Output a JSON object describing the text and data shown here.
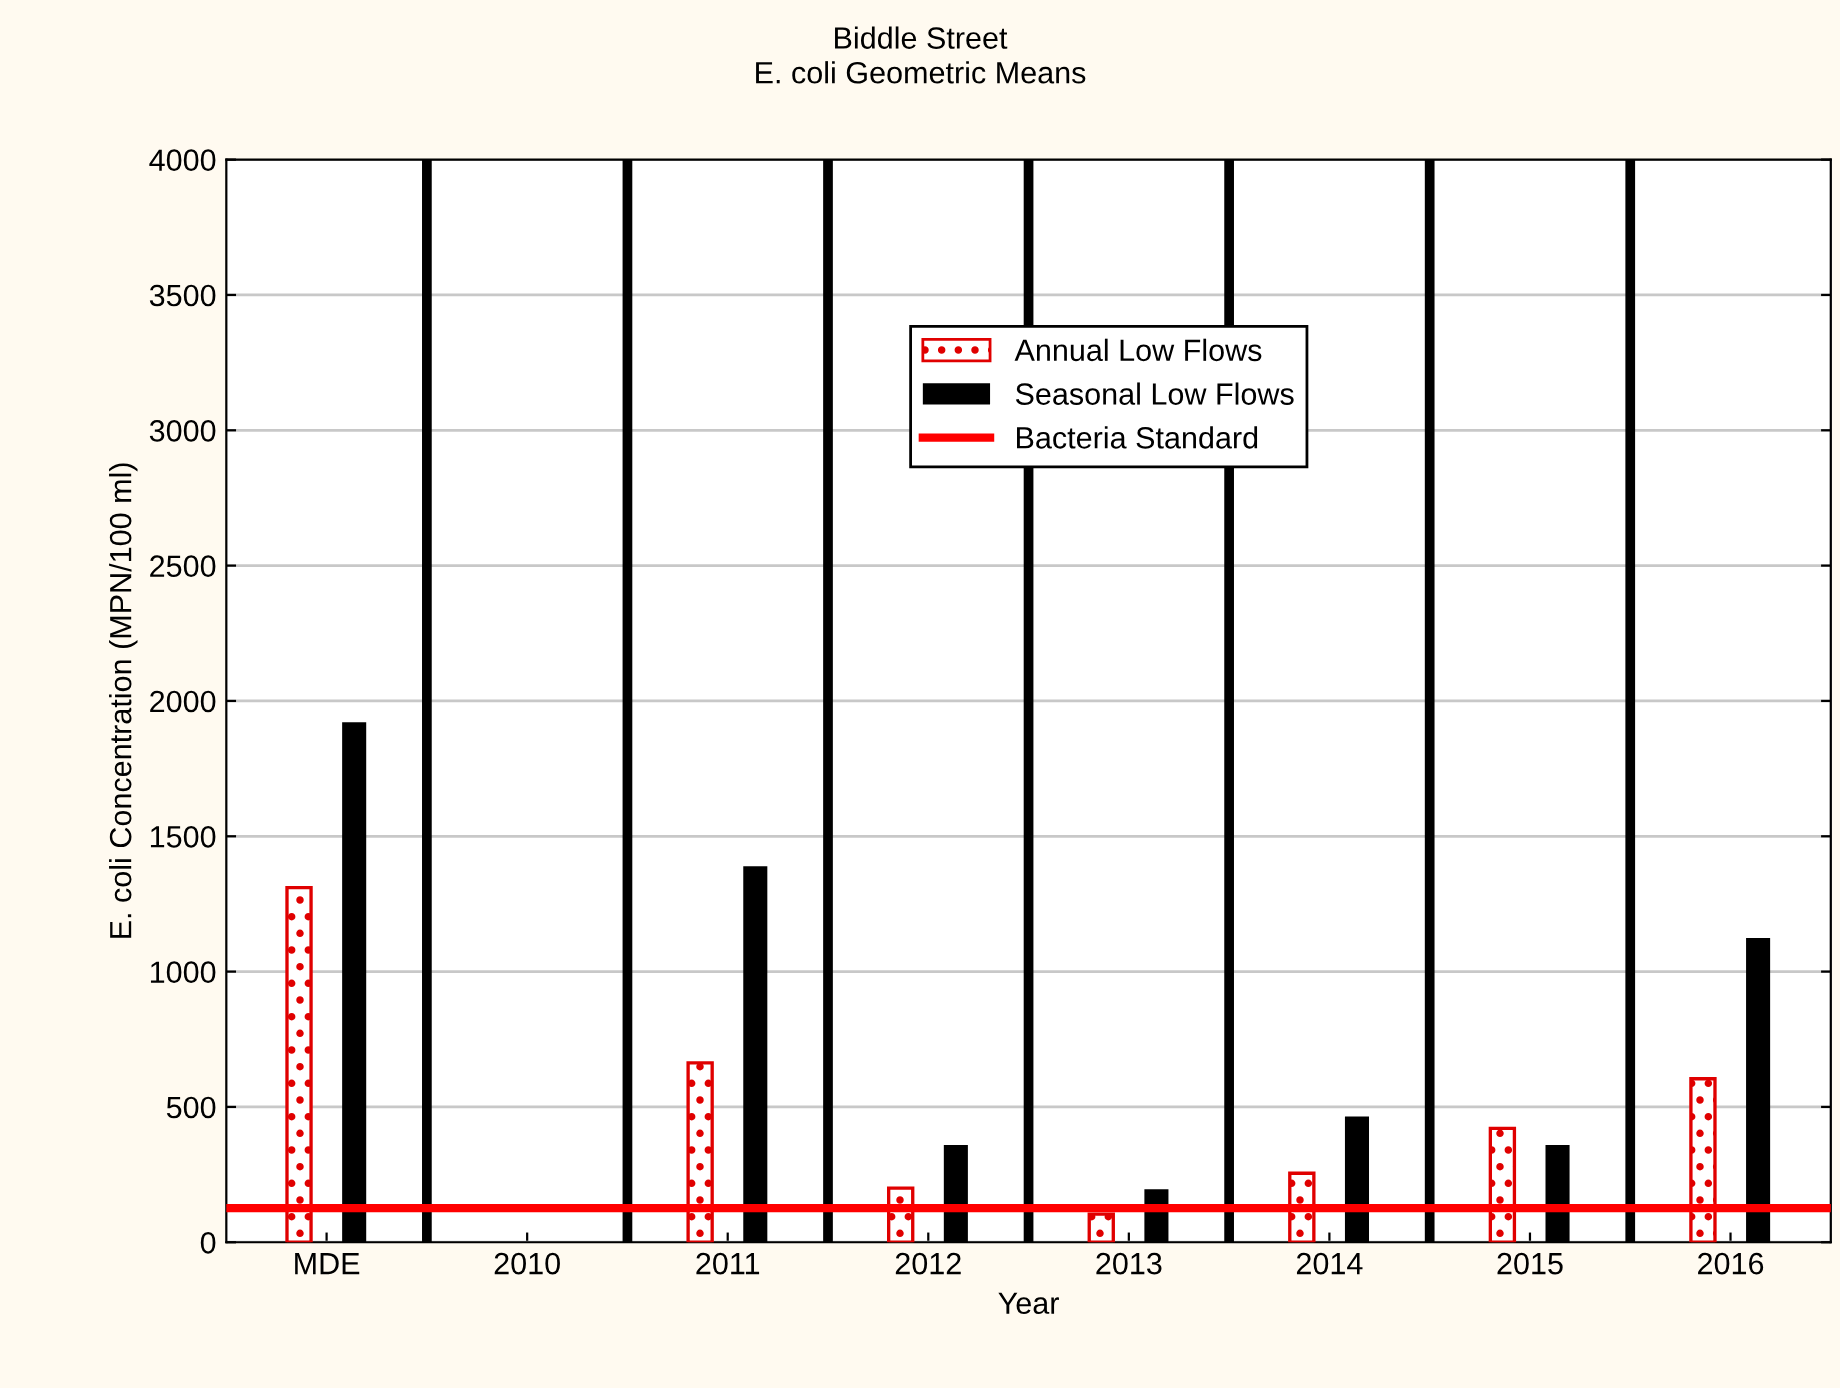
{
  "chart_data": {
    "type": "bar",
    "title": "Biddle Street",
    "subtitle": "E. coli Geometric Means",
    "xlabel": "Year",
    "ylabel": "E. coli Concentration (MPN/100 ml)",
    "categories": [
      "MDE",
      "2010",
      "2011",
      "2012",
      "2013",
      "2014",
      "2015",
      "2016"
    ],
    "series": [
      {
        "name": "Annual Low Flows",
        "color": "#e00000",
        "values": [
          1310,
          null,
          663,
          200,
          104,
          255,
          421,
          604
        ]
      },
      {
        "name": "Seasonal Low Flows",
        "color": "#000000",
        "values": [
          1921,
          null,
          1389,
          359,
          196,
          465,
          359,
          1124
        ]
      }
    ],
    "ylim": [
      0,
      4000
    ],
    "yticks": [
      0,
      500,
      1000,
      1500,
      2000,
      2500,
      3000,
      3500,
      4000
    ],
    "ref_lines": [
      {
        "axis": "y",
        "value": 126,
        "label": "Bacteria Standard",
        "color": "#ff0000"
      }
    ],
    "grid": "y",
    "legend": "top"
  }
}
